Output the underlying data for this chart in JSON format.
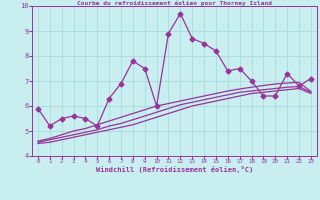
{
  "title": "Courbe du refroidissement éolien pour Thorney Island",
  "xlabel": "Windchill (Refroidissement éolien,°C)",
  "background_color": "#c8eef0",
  "grid_color": "#aadddd",
  "line_color": "#993399",
  "x_data": [
    0,
    1,
    2,
    3,
    4,
    5,
    6,
    7,
    8,
    9,
    10,
    11,
    12,
    13,
    14,
    15,
    16,
    17,
    18,
    19,
    20,
    21,
    22,
    23
  ],
  "y_main": [
    5.9,
    5.2,
    5.5,
    5.6,
    5.5,
    5.2,
    6.3,
    6.9,
    7.8,
    7.5,
    6.0,
    8.9,
    9.7,
    8.7,
    8.5,
    8.2,
    7.4,
    7.5,
    7.0,
    6.4,
    6.4,
    7.3,
    6.8,
    7.1
  ],
  "y_smooth1": [
    4.5,
    4.55,
    4.65,
    4.75,
    4.85,
    4.95,
    5.05,
    5.15,
    5.25,
    5.4,
    5.55,
    5.7,
    5.85,
    6.0,
    6.1,
    6.2,
    6.3,
    6.4,
    6.5,
    6.55,
    6.6,
    6.65,
    6.7,
    6.5
  ],
  "y_smooth2": [
    4.55,
    4.65,
    4.75,
    4.85,
    4.95,
    5.05,
    5.2,
    5.3,
    5.45,
    5.6,
    5.75,
    5.9,
    6.05,
    6.15,
    6.25,
    6.35,
    6.45,
    6.55,
    6.6,
    6.65,
    6.7,
    6.75,
    6.78,
    6.55
  ],
  "y_smooth3": [
    4.6,
    4.7,
    4.85,
    5.0,
    5.1,
    5.25,
    5.4,
    5.55,
    5.7,
    5.85,
    6.0,
    6.1,
    6.2,
    6.3,
    6.4,
    6.5,
    6.6,
    6.68,
    6.75,
    6.82,
    6.88,
    6.92,
    6.95,
    6.58
  ],
  "ylim": [
    4.0,
    10.0
  ],
  "xlim": [
    -0.5,
    23.5
  ],
  "yticks": [
    4,
    5,
    6,
    7,
    8,
    9,
    10
  ],
  "xticks": [
    0,
    1,
    2,
    3,
    4,
    5,
    6,
    7,
    8,
    9,
    10,
    11,
    12,
    13,
    14,
    15,
    16,
    17,
    18,
    19,
    20,
    21,
    22,
    23
  ],
  "markersize": 2.5,
  "linewidth": 0.9
}
